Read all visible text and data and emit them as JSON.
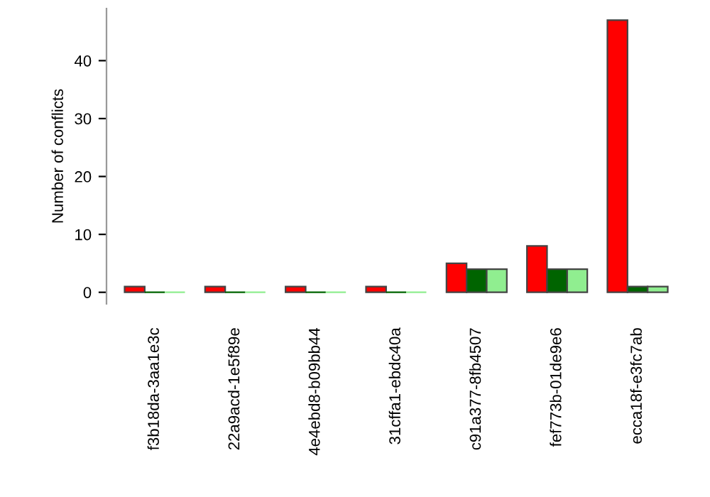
{
  "chart_data": {
    "type": "bar",
    "ylabel": "Number of conflicts",
    "categories": [
      "f3b18da-3aa1e3c",
      "22a9acd-1e5f89e",
      "4e4ebd8-b09bb44",
      "31cffa1-ebdc40a",
      "c91a377-8fb4507",
      "fef773b-01de9e6",
      "ecca18f-e3fc7ab"
    ],
    "series": [
      {
        "color": "#ff0000",
        "values": [
          1,
          1,
          1,
          1,
          5,
          8,
          47
        ]
      },
      {
        "color": "#006400",
        "values": [
          0,
          0,
          0,
          0,
          4,
          4,
          1
        ]
      },
      {
        "color": "#90ee90",
        "values": [
          0,
          0,
          0,
          0,
          4,
          4,
          1
        ]
      }
    ],
    "ylim": [
      -2,
      49
    ],
    "yticks": [
      0,
      10,
      20,
      30,
      40
    ],
    "grid": false,
    "legend": false
  }
}
